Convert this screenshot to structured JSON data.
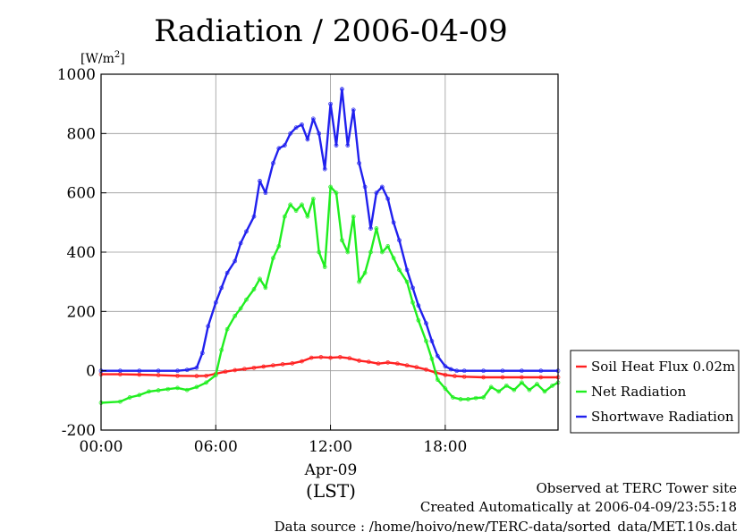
{
  "chart_data": {
    "type": "line",
    "title": "Radiation / 2006-04-09",
    "ylabel_base": "[W/m",
    "ylabel_sup": "2",
    "ylabel_end": "]",
    "ylim": [
      -200,
      1000
    ],
    "yticks": [
      -200,
      0,
      200,
      400,
      600,
      800,
      1000
    ],
    "xlim": [
      0,
      23.9
    ],
    "xticks": [
      0,
      6,
      12,
      18
    ],
    "xtick_labels": [
      "00:00",
      "06:00",
      "12:00",
      "18:00"
    ],
    "date_label": "Apr-09",
    "xunit_label": "(LST)",
    "grid": true,
    "legend_position": "right",
    "series": [
      {
        "name": "Soil Heat Flux 0.02m",
        "color": "#ff2020",
        "x": [
          0,
          1,
          2,
          3,
          4,
          5,
          5.5,
          6,
          6.5,
          7,
          7.5,
          8,
          8.5,
          9,
          9.5,
          10,
          10.5,
          11,
          11.5,
          12,
          12.5,
          13,
          13.5,
          14,
          14.5,
          15,
          15.5,
          16,
          16.5,
          17,
          17.5,
          18,
          18.5,
          19,
          20,
          21,
          22,
          23,
          23.9
        ],
        "y": [
          -12,
          -12,
          -13,
          -15,
          -17,
          -18,
          -17,
          -10,
          -3,
          2,
          6,
          10,
          14,
          18,
          22,
          25,
          32,
          44,
          46,
          44,
          46,
          42,
          34,
          30,
          24,
          28,
          24,
          18,
          12,
          4,
          -6,
          -14,
          -18,
          -20,
          -22,
          -22,
          -22,
          -22,
          -22
        ]
      },
      {
        "name": "Net Radiation",
        "color": "#20ee20",
        "x": [
          0,
          1,
          1.5,
          2,
          2.5,
          3,
          3.5,
          4,
          4.5,
          5,
          5.5,
          6,
          6.3,
          6.6,
          7,
          7.3,
          7.6,
          8,
          8.3,
          8.6,
          9,
          9.3,
          9.6,
          9.9,
          10.2,
          10.5,
          10.8,
          11.1,
          11.4,
          11.7,
          12,
          12.3,
          12.6,
          12.9,
          13.2,
          13.5,
          13.8,
          14.1,
          14.4,
          14.7,
          15,
          15.3,
          15.6,
          16,
          16.3,
          16.6,
          17,
          17.3,
          17.6,
          18,
          18.4,
          18.8,
          19.2,
          19.6,
          20,
          20.4,
          20.8,
          21.2,
          21.6,
          22,
          22.4,
          22.8,
          23.2,
          23.6,
          23.9
        ],
        "y": [
          -108,
          -104,
          -90,
          -82,
          -70,
          -66,
          -62,
          -58,
          -65,
          -55,
          -40,
          -15,
          70,
          140,
          185,
          210,
          240,
          275,
          310,
          280,
          380,
          420,
          520,
          560,
          540,
          560,
          520,
          580,
          400,
          350,
          620,
          600,
          440,
          400,
          520,
          300,
          330,
          400,
          480,
          400,
          420,
          380,
          340,
          300,
          230,
          170,
          100,
          40,
          -30,
          -60,
          -90,
          -96,
          -96,
          -92,
          -90,
          -55,
          -70,
          -50,
          -65,
          -40,
          -65,
          -45,
          -70,
          -50,
          -40
        ]
      },
      {
        "name": "Shortwave Radiation",
        "color": "#2020ee",
        "x": [
          0,
          1,
          2,
          3,
          4,
          4.5,
          5,
          5.3,
          5.6,
          6,
          6.3,
          6.6,
          7,
          7.3,
          7.6,
          8,
          8.3,
          8.6,
          9,
          9.3,
          9.6,
          9.9,
          10.2,
          10.5,
          10.8,
          11.1,
          11.4,
          11.7,
          12,
          12.3,
          12.6,
          12.9,
          13.2,
          13.5,
          13.8,
          14.1,
          14.4,
          14.7,
          15,
          15.3,
          15.6,
          16,
          16.3,
          16.6,
          17,
          17.3,
          17.6,
          18,
          18.3,
          18.6,
          19,
          20,
          21,
          22,
          23,
          23.9
        ],
        "y": [
          0,
          0,
          0,
          0,
          0,
          3,
          10,
          60,
          150,
          230,
          280,
          330,
          370,
          430,
          470,
          520,
          640,
          600,
          700,
          750,
          760,
          800,
          820,
          830,
          780,
          850,
          800,
          680,
          900,
          760,
          950,
          760,
          880,
          700,
          620,
          480,
          600,
          620,
          580,
          500,
          440,
          340,
          280,
          220,
          160,
          100,
          50,
          15,
          5,
          0,
          0,
          0,
          0,
          0,
          0,
          0
        ]
      }
    ]
  },
  "footer": {
    "line1": "Observed at TERC Tower site",
    "line2": "Created Automatically at 2006-04-09/23:55:18",
    "line3": "Data source : /home/hoivo/new/TERC-data/sorted_data/MET.10s.dat"
  }
}
